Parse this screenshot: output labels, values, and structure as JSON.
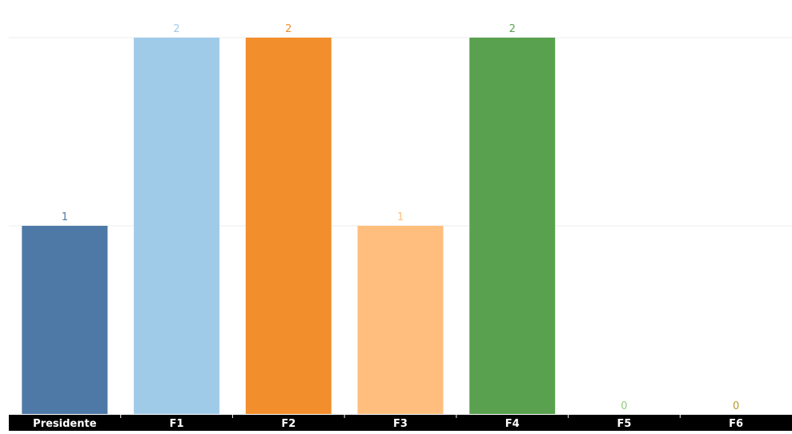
{
  "chart_data": {
    "type": "bar",
    "categories": [
      "Presidente",
      "F1",
      "F2",
      "F3",
      "F4",
      "F5",
      "F6"
    ],
    "values": [
      1,
      2,
      2,
      1,
      2,
      0,
      0
    ],
    "colors": [
      "#4e79a7",
      "#a0cbe8",
      "#f28e2b",
      "#ffbe7d",
      "#59a14f",
      "#8cd17d",
      "#b6992d"
    ],
    "ylim": [
      0,
      2
    ],
    "grid": true,
    "title": "",
    "xlabel": "",
    "ylabel": ""
  }
}
